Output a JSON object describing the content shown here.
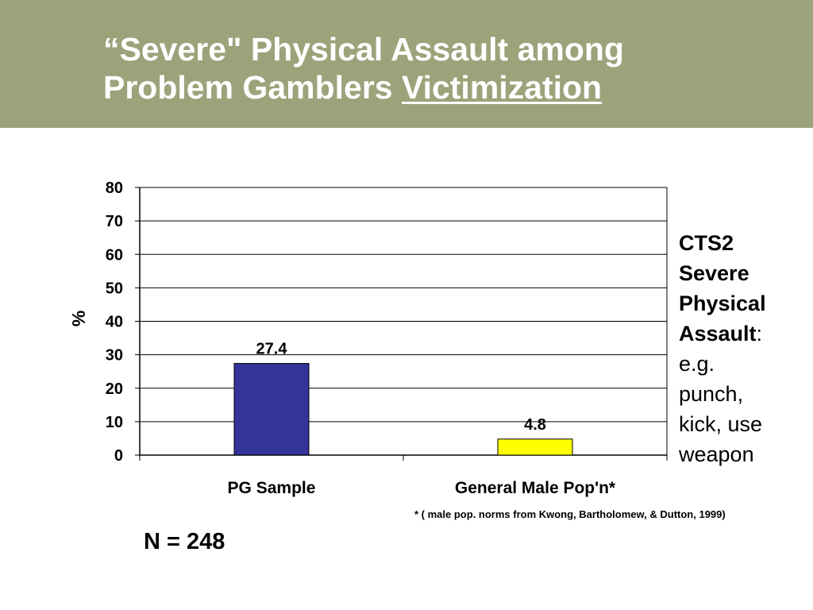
{
  "slide": {
    "title_line1": "“Severe\" Physical Assault among",
    "title_line2_prefix": "Problem Gamblers ",
    "title_line2_underlined": "Victimization"
  },
  "side_note": {
    "line1": "CTS2",
    "line2": "Severe",
    "line3": "Physical",
    "line4_bold": "Assault",
    "line4_rest": ":",
    "line5": "e.g.",
    "line6": "punch,",
    "line7": "kick, use",
    "line8": "weapon"
  },
  "footnote": "* ( male pop. norms from Kwong, Bartholomew, & Dutton, 1999)",
  "sample_size": "N = 248",
  "colors": {
    "header_bg": "#9ca37b",
    "bar_pg": "#333399",
    "bar_general": "#ffff00"
  },
  "chart_data": {
    "type": "bar",
    "title": "",
    "xlabel": "",
    "ylabel": "%",
    "ylim": [
      0,
      80
    ],
    "yticks": [
      0,
      10,
      20,
      30,
      40,
      50,
      60,
      70,
      80
    ],
    "grid": true,
    "legend": "none",
    "categories": [
      "PG Sample",
      "General Male Pop'n*"
    ],
    "values": [
      27.4,
      4.8
    ],
    "value_labels": [
      "27.4",
      "4.8"
    ],
    "bar_colors": [
      "#333399",
      "#ffff00"
    ]
  }
}
